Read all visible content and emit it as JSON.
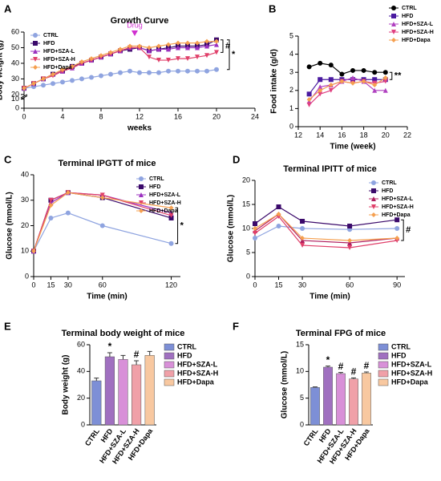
{
  "chart_data": [
    {
      "type": "line",
      "panel": "A",
      "title": "Growth Curve",
      "xlabel": "weeks",
      "ylabel": "Body weight (g)",
      "x": [
        0,
        1,
        2,
        3,
        4,
        5,
        6,
        7,
        8,
        9,
        10,
        11,
        12,
        13,
        14,
        15,
        16,
        17,
        18,
        19,
        20
      ],
      "xlim": [
        0,
        24
      ],
      "xticks": [
        0,
        4,
        8,
        12,
        16,
        20,
        24
      ],
      "ylim": [
        0,
        60
      ],
      "yticks": [
        0,
        10,
        20,
        30,
        40,
        50,
        60
      ],
      "axis_break": [
        10,
        20
      ],
      "legend": "upper left",
      "drug_label": "Drug",
      "drug_week": 11.5,
      "significance": [
        {
          "text": "#",
          "between": [
            "HFD",
            "HFD+SZA-H"
          ]
        },
        {
          "text": "*",
          "between": [
            "HFD",
            "CTRL"
          ]
        }
      ],
      "series": [
        {
          "name": "CTRL",
          "color": "#8fa4e0",
          "marker": "circle",
          "values": [
            24,
            25,
            26,
            27,
            28,
            29,
            30,
            31,
            32,
            33,
            34,
            35,
            34,
            34,
            34,
            35,
            35,
            35,
            35,
            35,
            36
          ]
        },
        {
          "name": "HFD",
          "color": "#3b0a6b",
          "marker": "square",
          "values": [
            24,
            27,
            30,
            33,
            35,
            38,
            40,
            42,
            44,
            46,
            48,
            49,
            50,
            48,
            49,
            50,
            51,
            51,
            51,
            52,
            55
          ]
        },
        {
          "name": "HFD+SZA-L",
          "color": "#9b30c0",
          "marker": "triangle",
          "values": [
            24,
            27,
            30,
            33,
            35,
            37,
            40,
            42,
            44,
            46,
            48,
            50,
            50,
            48,
            49,
            49,
            50,
            50,
            50,
            51,
            52
          ]
        },
        {
          "name": "HFD+SZA-H",
          "color": "#e0406a",
          "marker": "down",
          "values": [
            24,
            27,
            30,
            32,
            35,
            37,
            40,
            42,
            44,
            46,
            48,
            50,
            50,
            44,
            42,
            42,
            43,
            43,
            44,
            45,
            47
          ]
        },
        {
          "name": "HFD+Dapa",
          "color": "#f5a050",
          "marker": "diamond",
          "values": [
            24,
            27,
            30,
            33,
            36,
            38,
            41,
            43,
            45,
            47,
            49,
            51,
            51,
            50,
            51,
            52,
            53,
            53,
            53,
            54,
            54
          ]
        }
      ]
    },
    {
      "type": "line",
      "panel": "B",
      "xlabel": "Time (week)",
      "ylabel": "Food intake (g/d)",
      "x": [
        13,
        14,
        15,
        16,
        17,
        18,
        19,
        20
      ],
      "xlim": [
        12,
        22
      ],
      "xticks": [
        12,
        14,
        16,
        18,
        20,
        22
      ],
      "ylim": [
        0,
        5
      ],
      "yticks": [
        0,
        1,
        2,
        3,
        4,
        5
      ],
      "legend": "upper right outside",
      "significance": [
        {
          "text": "**",
          "between": [
            "CTRL",
            "HFD"
          ]
        }
      ],
      "series": [
        {
          "name": "CTRL",
          "color": "#000000",
          "marker": "circle",
          "values": [
            3.3,
            3.5,
            3.4,
            2.9,
            3.1,
            3.1,
            3.0,
            3.0
          ]
        },
        {
          "name": "HFD",
          "color": "#4a1aa0",
          "marker": "square",
          "values": [
            1.8,
            2.6,
            2.6,
            2.6,
            2.6,
            2.6,
            2.6,
            2.6
          ]
        },
        {
          "name": "HFD+SZA-L",
          "color": "#b040c0",
          "marker": "triangle",
          "values": [
            1.4,
            2.2,
            2.3,
            2.5,
            2.7,
            2.5,
            2.0,
            2.0
          ]
        },
        {
          "name": "HFD+SZA-H",
          "color": "#e04080",
          "marker": "down",
          "values": [
            1.2,
            1.8,
            2.0,
            2.5,
            2.4,
            2.5,
            2.4,
            2.5
          ]
        },
        {
          "name": "HFD+Dapa",
          "color": "#f5a050",
          "marker": "diamond",
          "values": [
            1.5,
            2.0,
            2.3,
            2.5,
            2.4,
            2.5,
            2.3,
            2.7
          ]
        }
      ]
    },
    {
      "type": "line",
      "panel": "C",
      "title": "Terminal IPGTT of mice",
      "xlabel": "Time (min)",
      "ylabel": "Glucose (mmol/L)",
      "x": [
        0,
        15,
        30,
        60,
        120
      ],
      "xlim": [
        0,
        128
      ],
      "xticks": [
        0,
        15,
        30,
        60,
        120
      ],
      "ylim": [
        0,
        40
      ],
      "yticks": [
        0,
        10,
        20,
        30,
        40
      ],
      "legend": "upper right",
      "significance": [
        {
          "text": "*",
          "between": [
            "HFD+Dapa",
            "CTRL"
          ]
        }
      ],
      "series": [
        {
          "name": "CTRL",
          "color": "#8fa4e0",
          "marker": "circle",
          "values": [
            10,
            23,
            25,
            20,
            13
          ]
        },
        {
          "name": "HFD",
          "color": "#3b0a6b",
          "marker": "square",
          "values": [
            10,
            30,
            33,
            31,
            23
          ]
        },
        {
          "name": "HFD+SZA-L",
          "color": "#9b30c0",
          "marker": "triangle",
          "values": [
            10,
            29,
            33,
            32,
            25
          ]
        },
        {
          "name": "HFD+SZA-H",
          "color": "#e0406a",
          "marker": "down",
          "values": [
            10,
            30,
            33,
            32,
            24
          ]
        },
        {
          "name": "HFD+Dapa",
          "color": "#f5a050",
          "marker": "diamond",
          "values": [
            10,
            28,
            33,
            31,
            27
          ]
        }
      ]
    },
    {
      "type": "line",
      "panel": "D",
      "title": "Terminal IPITT of mice",
      "xlabel": "Time (min)",
      "ylabel": "Glucose (mmol/L)",
      "x": [
        0,
        15,
        30,
        60,
        90
      ],
      "xlim": [
        0,
        95
      ],
      "xticks": [
        0,
        15,
        30,
        60,
        90
      ],
      "ylim": [
        0,
        20
      ],
      "yticks": [
        0,
        5,
        10,
        15,
        20
      ],
      "legend": "upper right",
      "significance": [
        {
          "text": "#",
          "between": [
            "HFD",
            "HFD+SZA-H"
          ]
        }
      ],
      "series": [
        {
          "name": "CTRL",
          "color": "#8fa4e0",
          "marker": "circle",
          "values": [
            8,
            10.5,
            10,
            9.8,
            10
          ]
        },
        {
          "name": "HFD",
          "color": "#3b0a6b",
          "marker": "square",
          "values": [
            11,
            14.5,
            11.5,
            10.5,
            11.8
          ]
        },
        {
          "name": "HFD+SZA-L",
          "color": "#b02060",
          "marker": "triangle",
          "values": [
            9.5,
            13,
            7.5,
            7,
            8
          ]
        },
        {
          "name": "HFD+SZA-H",
          "color": "#e0406a",
          "marker": "down",
          "values": [
            9,
            12.5,
            6.5,
            6,
            7.5
          ]
        },
        {
          "name": "HFD+Dapa",
          "color": "#f5a050",
          "marker": "diamond",
          "values": [
            10,
            13,
            8,
            7.5,
            8
          ]
        }
      ]
    },
    {
      "type": "bar",
      "panel": "E",
      "title": "Terminal body weight of mice",
      "ylabel": "Body weight (g)",
      "categories": [
        "CTRL",
        "HFD",
        "HFD+SZA-L",
        "HFD+SZA-H",
        "HFD+Dapa"
      ],
      "values": [
        33,
        51,
        49,
        45,
        52
      ],
      "errors": [
        2,
        3,
        3,
        3,
        3
      ],
      "bar_annotations": [
        null,
        "*",
        null,
        "#",
        null
      ],
      "colors": [
        "#7d8fd6",
        "#a070c0",
        "#d890d8",
        "#f0a0a8",
        "#f8c8a0"
      ],
      "ylim": [
        0,
        60
      ],
      "yticks": [
        0,
        20,
        40,
        60
      ],
      "legend": "right outside"
    },
    {
      "type": "bar",
      "panel": "F",
      "title": "Terminal FPG of mice",
      "ylabel": "Glucose (mmol/L)",
      "categories": [
        "CTRL",
        "HFD",
        "HFD+SZA-L",
        "HFD+SZA-H",
        "HFD+Dapa"
      ],
      "values": [
        7,
        10.8,
        9.6,
        8.6,
        9.7
      ],
      "errors": [
        0.1,
        0.2,
        0.2,
        0.2,
        0.2
      ],
      "bar_annotations": [
        null,
        "*",
        "#",
        "#",
        "#"
      ],
      "colors": [
        "#7d8fd6",
        "#a070c0",
        "#d890d8",
        "#f0a0a8",
        "#f8c8a0"
      ],
      "ylim": [
        0,
        15
      ],
      "yticks": [
        0,
        5,
        10,
        15
      ],
      "legend": "right outside"
    }
  ]
}
